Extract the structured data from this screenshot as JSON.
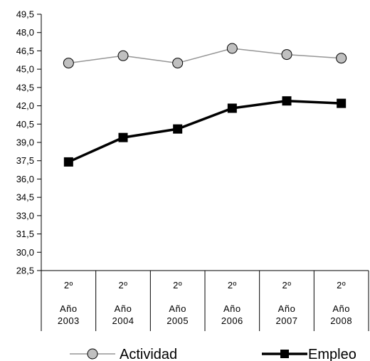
{
  "chart_data": {
    "type": "line",
    "categories": [
      {
        "line1": "2º",
        "line2": "Año",
        "line3": "2003"
      },
      {
        "line1": "2º",
        "line2": "Año",
        "line3": "2004"
      },
      {
        "line1": "2º",
        "line2": "Año",
        "line3": "2005"
      },
      {
        "line1": "2º",
        "line2": "Año",
        "line3": "2006"
      },
      {
        "line1": "2º",
        "line2": "Año",
        "line3": "2007"
      },
      {
        "line1": "2º",
        "line2": "Año",
        "line3": "2008"
      }
    ],
    "ylim": [
      28.5,
      49.5
    ],
    "yticks": [
      28.5,
      30.0,
      31.5,
      33.0,
      34.5,
      36.0,
      37.5,
      39.0,
      40.5,
      42.0,
      43.5,
      45.0,
      46.5,
      48.0,
      49.5
    ],
    "ytick_labels": [
      "28,5",
      "30,0",
      "31,5",
      "33,0",
      "34,5",
      "36,0",
      "37,5",
      "39,0",
      "40,5",
      "42,0",
      "43,5",
      "45,0",
      "46,5",
      "48,0",
      "49,5"
    ],
    "grid": false,
    "legend_position": "bottom",
    "series": [
      {
        "name": "Actividad",
        "values": [
          45.5,
          46.1,
          45.5,
          46.7,
          46.2,
          45.9
        ],
        "line_color": "#969696",
        "marker": "circle",
        "marker_fill": "#c0c0c0",
        "marker_edge": "#000000"
      },
      {
        "name": "Empleo",
        "values": [
          37.4,
          39.4,
          40.1,
          41.8,
          42.4,
          42.2
        ],
        "line_color": "#000000",
        "marker": "square",
        "marker_fill": "#000000",
        "marker_edge": "#000000"
      }
    ]
  }
}
